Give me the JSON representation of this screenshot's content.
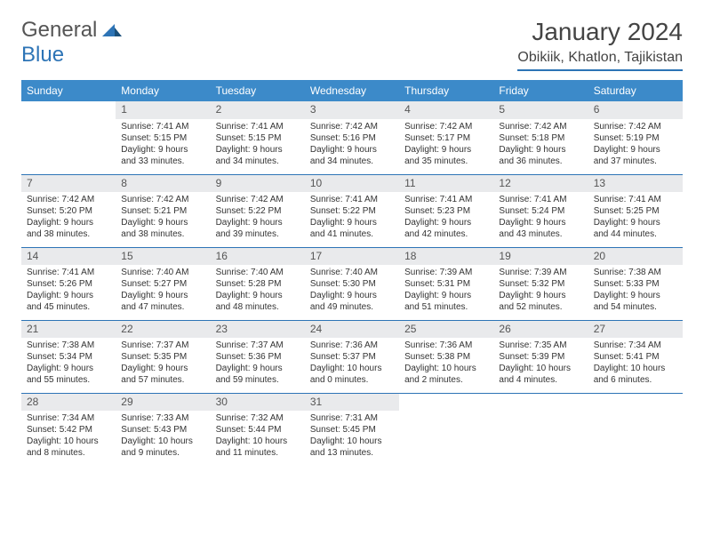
{
  "brand": {
    "part1": "General",
    "part2": "Blue"
  },
  "title": "January 2024",
  "location": "Obikiik, Khatlon, Tajikistan",
  "colors": {
    "header_bg": "#3c8ac9",
    "accent": "#2d74b6",
    "daynum_bg": "#e9eaec",
    "text": "#333333",
    "page_bg": "#ffffff"
  },
  "weekdays": [
    "Sunday",
    "Monday",
    "Tuesday",
    "Wednesday",
    "Thursday",
    "Friday",
    "Saturday"
  ],
  "weeks": [
    [
      null,
      {
        "n": "1",
        "sr": "7:41 AM",
        "ss": "5:15 PM",
        "dl": "9 hours and 33 minutes."
      },
      {
        "n": "2",
        "sr": "7:41 AM",
        "ss": "5:15 PM",
        "dl": "9 hours and 34 minutes."
      },
      {
        "n": "3",
        "sr": "7:42 AM",
        "ss": "5:16 PM",
        "dl": "9 hours and 34 minutes."
      },
      {
        "n": "4",
        "sr": "7:42 AM",
        "ss": "5:17 PM",
        "dl": "9 hours and 35 minutes."
      },
      {
        "n": "5",
        "sr": "7:42 AM",
        "ss": "5:18 PM",
        "dl": "9 hours and 36 minutes."
      },
      {
        "n": "6",
        "sr": "7:42 AM",
        "ss": "5:19 PM",
        "dl": "9 hours and 37 minutes."
      }
    ],
    [
      {
        "n": "7",
        "sr": "7:42 AM",
        "ss": "5:20 PM",
        "dl": "9 hours and 38 minutes."
      },
      {
        "n": "8",
        "sr": "7:42 AM",
        "ss": "5:21 PM",
        "dl": "9 hours and 38 minutes."
      },
      {
        "n": "9",
        "sr": "7:42 AM",
        "ss": "5:22 PM",
        "dl": "9 hours and 39 minutes."
      },
      {
        "n": "10",
        "sr": "7:41 AM",
        "ss": "5:22 PM",
        "dl": "9 hours and 41 minutes."
      },
      {
        "n": "11",
        "sr": "7:41 AM",
        "ss": "5:23 PM",
        "dl": "9 hours and 42 minutes."
      },
      {
        "n": "12",
        "sr": "7:41 AM",
        "ss": "5:24 PM",
        "dl": "9 hours and 43 minutes."
      },
      {
        "n": "13",
        "sr": "7:41 AM",
        "ss": "5:25 PM",
        "dl": "9 hours and 44 minutes."
      }
    ],
    [
      {
        "n": "14",
        "sr": "7:41 AM",
        "ss": "5:26 PM",
        "dl": "9 hours and 45 minutes."
      },
      {
        "n": "15",
        "sr": "7:40 AM",
        "ss": "5:27 PM",
        "dl": "9 hours and 47 minutes."
      },
      {
        "n": "16",
        "sr": "7:40 AM",
        "ss": "5:28 PM",
        "dl": "9 hours and 48 minutes."
      },
      {
        "n": "17",
        "sr": "7:40 AM",
        "ss": "5:30 PM",
        "dl": "9 hours and 49 minutes."
      },
      {
        "n": "18",
        "sr": "7:39 AM",
        "ss": "5:31 PM",
        "dl": "9 hours and 51 minutes."
      },
      {
        "n": "19",
        "sr": "7:39 AM",
        "ss": "5:32 PM",
        "dl": "9 hours and 52 minutes."
      },
      {
        "n": "20",
        "sr": "7:38 AM",
        "ss": "5:33 PM",
        "dl": "9 hours and 54 minutes."
      }
    ],
    [
      {
        "n": "21",
        "sr": "7:38 AM",
        "ss": "5:34 PM",
        "dl": "9 hours and 55 minutes."
      },
      {
        "n": "22",
        "sr": "7:37 AM",
        "ss": "5:35 PM",
        "dl": "9 hours and 57 minutes."
      },
      {
        "n": "23",
        "sr": "7:37 AM",
        "ss": "5:36 PM",
        "dl": "9 hours and 59 minutes."
      },
      {
        "n": "24",
        "sr": "7:36 AM",
        "ss": "5:37 PM",
        "dl": "10 hours and 0 minutes."
      },
      {
        "n": "25",
        "sr": "7:36 AM",
        "ss": "5:38 PM",
        "dl": "10 hours and 2 minutes."
      },
      {
        "n": "26",
        "sr": "7:35 AM",
        "ss": "5:39 PM",
        "dl": "10 hours and 4 minutes."
      },
      {
        "n": "27",
        "sr": "7:34 AM",
        "ss": "5:41 PM",
        "dl": "10 hours and 6 minutes."
      }
    ],
    [
      {
        "n": "28",
        "sr": "7:34 AM",
        "ss": "5:42 PM",
        "dl": "10 hours and 8 minutes."
      },
      {
        "n": "29",
        "sr": "7:33 AM",
        "ss": "5:43 PM",
        "dl": "10 hours and 9 minutes."
      },
      {
        "n": "30",
        "sr": "7:32 AM",
        "ss": "5:44 PM",
        "dl": "10 hours and 11 minutes."
      },
      {
        "n": "31",
        "sr": "7:31 AM",
        "ss": "5:45 PM",
        "dl": "10 hours and 13 minutes."
      },
      null,
      null,
      null
    ]
  ],
  "labels": {
    "sunrise": "Sunrise:",
    "sunset": "Sunset:",
    "daylight": "Daylight:"
  }
}
